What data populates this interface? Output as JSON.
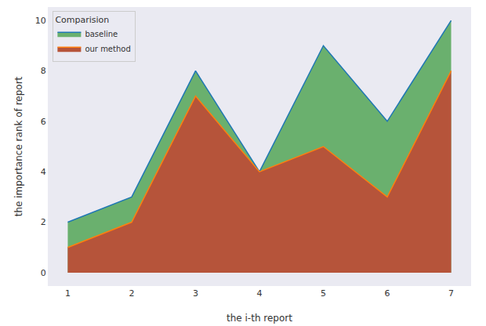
{
  "chart_data": {
    "type": "area",
    "x_label": "the i-th report",
    "y_label": "the importance rank of report",
    "legend_title": "Comparision",
    "legend": "upper left",
    "grid": false,
    "x": [
      1,
      2,
      3,
      4,
      5,
      6,
      7
    ],
    "series": [
      {
        "name": "baseline",
        "color": "#1f77b4",
        "values": [
          2,
          3,
          8,
          4,
          9,
          6,
          10
        ]
      },
      {
        "name": "our method",
        "color": "#ff7f0e",
        "values": [
          1,
          2,
          7,
          4,
          5,
          3,
          8
        ]
      }
    ],
    "xlim": [
      0.7,
      7.3
    ],
    "xticks": [
      1,
      2,
      3,
      4,
      5,
      6,
      7
    ],
    "ylim": [
      -0.5,
      10.5
    ],
    "yticks": [
      0,
      2,
      4,
      6,
      8,
      10
    ]
  }
}
